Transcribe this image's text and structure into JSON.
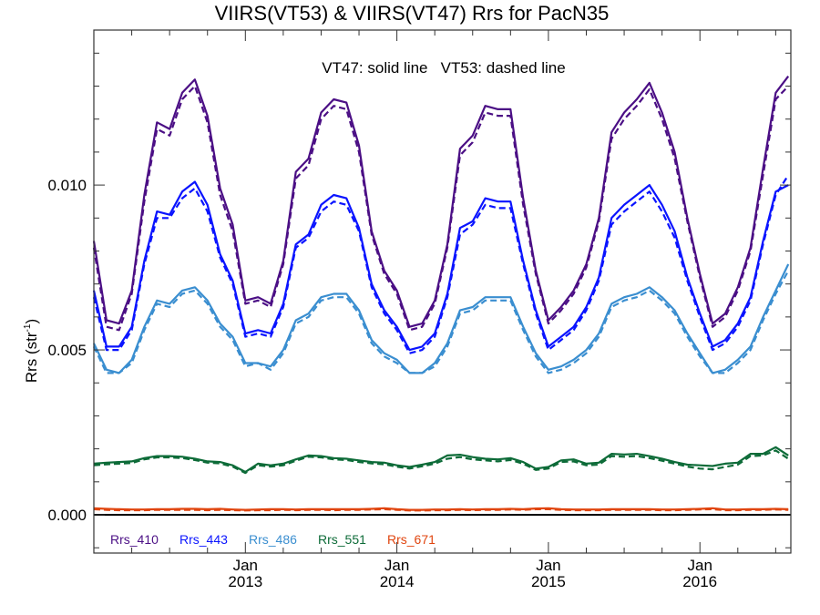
{
  "chart_data": {
    "type": "line",
    "title": "VIIRS(VT53) & VIIRS(VT47)  Rrs for PacN35",
    "annotation": "VT47: solid line   VT53: dashed line",
    "ylabel": "Rrs (str",
    "ylabel_sup": "-1",
    "ylabel_close": ")",
    "xlabel": "",
    "xlim": [
      2012.0,
      2016.6
    ],
    "ylim": [
      -0.00116,
      0.0147
    ],
    "yticks": [
      {
        "value": 0.0,
        "label": "0.000"
      },
      {
        "value": 0.005,
        "label": "0.005"
      },
      {
        "value": 0.01,
        "label": "0.010"
      }
    ],
    "xticks": [
      {
        "value": 2013.0,
        "label1": "Jan",
        "label2": "2013"
      },
      {
        "value": 2014.0,
        "label1": "Jan",
        "label2": "2014"
      },
      {
        "value": 2015.0,
        "label1": "Jan",
        "label2": "2015"
      },
      {
        "value": 2016.0,
        "label1": "Jan",
        "label2": "2016"
      }
    ],
    "x_start": 2012.0,
    "x_step_months": 1,
    "legend_placement": "bottom-left",
    "series": [
      {
        "name": "Rrs_410",
        "color": "#4b0f85",
        "sensor": "VT47",
        "style": "solid",
        "values": [
          0.0083,
          0.0059,
          0.0058,
          0.0068,
          0.0097,
          0.0119,
          0.0117,
          0.0128,
          0.0132,
          0.0121,
          0.0099,
          0.0088,
          0.0065,
          0.0066,
          0.0064,
          0.0077,
          0.0104,
          0.0108,
          0.0122,
          0.0126,
          0.0125,
          0.0112,
          0.0086,
          0.0074,
          0.0068,
          0.0057,
          0.0058,
          0.0065,
          0.0082,
          0.0111,
          0.0115,
          0.0124,
          0.0123,
          0.0123,
          0.0096,
          0.0074,
          0.0059,
          0.0063,
          0.0068,
          0.0076,
          0.009,
          0.0116,
          0.0122,
          0.0126,
          0.0131,
          0.0122,
          0.011,
          0.009,
          0.0073,
          0.0058,
          0.0061,
          0.0069,
          0.0081,
          0.0105,
          0.0128,
          0.0133
        ]
      },
      {
        "name": "Rrs_410",
        "color": "#4b0f85",
        "sensor": "VT53",
        "style": "dashed",
        "values": [
          0.0081,
          0.0057,
          0.0056,
          0.0067,
          0.0095,
          0.0117,
          0.0115,
          0.0126,
          0.013,
          0.0119,
          0.0097,
          0.0086,
          0.0064,
          0.0065,
          0.0063,
          0.0076,
          0.0102,
          0.0106,
          0.012,
          0.0124,
          0.0123,
          0.011,
          0.0085,
          0.0073,
          0.0067,
          0.0056,
          0.0057,
          0.0064,
          0.0081,
          0.0109,
          0.0113,
          0.0122,
          0.0121,
          0.0121,
          0.0094,
          0.0073,
          0.0058,
          0.0062,
          0.0067,
          0.0075,
          0.0089,
          0.0114,
          0.012,
          0.0124,
          0.0129,
          0.012,
          0.0108,
          0.0089,
          0.0072,
          0.0057,
          0.006,
          0.0068,
          0.008,
          0.0103,
          0.0126,
          0.013
        ]
      },
      {
        "name": "Rrs_443",
        "color": "#0a14ff",
        "sensor": "VT47",
        "style": "solid",
        "values": [
          0.0068,
          0.0051,
          0.0051,
          0.0057,
          0.0077,
          0.0092,
          0.0091,
          0.0098,
          0.0101,
          0.0094,
          0.0079,
          0.0071,
          0.0055,
          0.0056,
          0.0055,
          0.0064,
          0.0082,
          0.0085,
          0.0094,
          0.0097,
          0.0096,
          0.0087,
          0.007,
          0.0062,
          0.0057,
          0.005,
          0.0051,
          0.0055,
          0.0067,
          0.0087,
          0.0089,
          0.0096,
          0.0095,
          0.0095,
          0.0077,
          0.0062,
          0.0051,
          0.0054,
          0.0057,
          0.0063,
          0.0072,
          0.009,
          0.0094,
          0.0097,
          0.01,
          0.0094,
          0.0086,
          0.0072,
          0.0061,
          0.0051,
          0.0053,
          0.0058,
          0.0066,
          0.0083,
          0.0098,
          0.01
        ]
      },
      {
        "name": "Rrs_443",
        "color": "#0a14ff",
        "sensor": "VT53",
        "style": "dashed",
        "values": [
          0.0066,
          0.005,
          0.005,
          0.0056,
          0.0076,
          0.009,
          0.009,
          0.0096,
          0.0099,
          0.0092,
          0.0078,
          0.007,
          0.0054,
          0.0055,
          0.0054,
          0.0063,
          0.0081,
          0.0084,
          0.0092,
          0.0095,
          0.0094,
          0.0086,
          0.0069,
          0.0061,
          0.0056,
          0.0049,
          0.005,
          0.0054,
          0.0066,
          0.0085,
          0.0088,
          0.0094,
          0.0093,
          0.0093,
          0.0076,
          0.0061,
          0.005,
          0.0053,
          0.0056,
          0.0062,
          0.0071,
          0.0088,
          0.0092,
          0.0095,
          0.0098,
          0.0092,
          0.0084,
          0.0071,
          0.006,
          0.005,
          0.0052,
          0.0057,
          0.0065,
          0.0082,
          0.0097,
          0.0103
        ]
      },
      {
        "name": "Rrs_486",
        "color": "#3a8ed0",
        "sensor": "VT47",
        "style": "solid",
        "values": [
          0.0052,
          0.0044,
          0.0043,
          0.0047,
          0.0057,
          0.0065,
          0.0064,
          0.0068,
          0.0069,
          0.0065,
          0.0058,
          0.0054,
          0.0046,
          0.0046,
          0.0045,
          0.005,
          0.0059,
          0.0061,
          0.0066,
          0.0067,
          0.0067,
          0.0062,
          0.0053,
          0.0049,
          0.0047,
          0.0043,
          0.0043,
          0.0046,
          0.0052,
          0.0062,
          0.0063,
          0.0066,
          0.0066,
          0.0066,
          0.0057,
          0.0049,
          0.0044,
          0.0045,
          0.0047,
          0.005,
          0.0055,
          0.0064,
          0.0066,
          0.0067,
          0.0069,
          0.0066,
          0.0062,
          0.0055,
          0.0049,
          0.0043,
          0.0044,
          0.0047,
          0.0051,
          0.006,
          0.0068,
          0.0076
        ]
      },
      {
        "name": "Rrs_486",
        "color": "#3a8ed0",
        "sensor": "VT53",
        "style": "dashed",
        "values": [
          0.0051,
          0.0043,
          0.0043,
          0.0046,
          0.0056,
          0.0064,
          0.0063,
          0.0067,
          0.0068,
          0.0064,
          0.0057,
          0.0053,
          0.0045,
          0.0046,
          0.0044,
          0.0049,
          0.0058,
          0.006,
          0.0065,
          0.0066,
          0.0066,
          0.0061,
          0.0052,
          0.0048,
          0.0046,
          0.0043,
          0.0043,
          0.0045,
          0.0051,
          0.0061,
          0.0062,
          0.0065,
          0.0065,
          0.0065,
          0.0056,
          0.0048,
          0.0043,
          0.0044,
          0.0046,
          0.0049,
          0.0054,
          0.0063,
          0.0065,
          0.0066,
          0.0068,
          0.0065,
          0.0061,
          0.0054,
          0.0048,
          0.0043,
          0.0043,
          0.0046,
          0.005,
          0.0059,
          0.0067,
          0.0074
        ]
      },
      {
        "name": "Rrs_551",
        "color": "#0d6b38",
        "sensor": "VT47",
        "style": "solid",
        "values": [
          0.00155,
          0.00158,
          0.0016,
          0.00162,
          0.00172,
          0.00178,
          0.00178,
          0.00176,
          0.0017,
          0.00162,
          0.0016,
          0.0015,
          0.0013,
          0.00155,
          0.0015,
          0.00155,
          0.00168,
          0.0018,
          0.00178,
          0.00172,
          0.0017,
          0.00165,
          0.0016,
          0.00158,
          0.0015,
          0.00145,
          0.00152,
          0.0016,
          0.0018,
          0.00182,
          0.00175,
          0.0017,
          0.00168,
          0.00172,
          0.0016,
          0.0014,
          0.00145,
          0.00165,
          0.00168,
          0.00155,
          0.00158,
          0.00185,
          0.00183,
          0.00185,
          0.00178,
          0.0017,
          0.0016,
          0.00152,
          0.0015,
          0.00148,
          0.00155,
          0.00158,
          0.00185,
          0.00185,
          0.00205,
          0.0018
        ]
      },
      {
        "name": "Rrs_551",
        "color": "#0d6b38",
        "sensor": "VT53",
        "style": "dashed",
        "values": [
          0.0015,
          0.00153,
          0.00155,
          0.00157,
          0.00168,
          0.00174,
          0.00174,
          0.00172,
          0.00166,
          0.00158,
          0.00156,
          0.00146,
          0.00127,
          0.0015,
          0.00146,
          0.0015,
          0.00164,
          0.00176,
          0.00174,
          0.00168,
          0.00166,
          0.0016,
          0.00156,
          0.00153,
          0.00146,
          0.0014,
          0.00147,
          0.00155,
          0.0017,
          0.00175,
          0.00168,
          0.00165,
          0.00162,
          0.00166,
          0.00155,
          0.00136,
          0.0014,
          0.0016,
          0.00162,
          0.0015,
          0.00152,
          0.00178,
          0.00176,
          0.00178,
          0.00172,
          0.00164,
          0.00155,
          0.00146,
          0.0014,
          0.00138,
          0.00145,
          0.00152,
          0.00178,
          0.0018,
          0.00195,
          0.0017
        ]
      },
      {
        "name": "Rrs_671",
        "color": "#e0450f",
        "sensor": "VT47",
        "style": "solid",
        "values": [
          0.0002,
          0.00018,
          0.00017,
          0.00016,
          0.00016,
          0.00017,
          0.00017,
          0.00018,
          0.00018,
          0.00017,
          0.00018,
          0.00016,
          0.00015,
          0.00016,
          0.00017,
          0.00017,
          0.00016,
          0.00017,
          0.00017,
          0.00017,
          0.00017,
          0.00017,
          0.00018,
          0.0002,
          0.00017,
          0.00015,
          0.00015,
          0.00016,
          0.00016,
          0.00017,
          0.00016,
          0.00017,
          0.00017,
          0.00018,
          0.00017,
          0.00019,
          0.0002,
          0.00017,
          0.00016,
          0.00016,
          0.00016,
          0.00017,
          0.00017,
          0.00017,
          0.00017,
          0.00016,
          0.00016,
          0.00017,
          0.00018,
          0.0002,
          0.00016,
          0.00016,
          0.00017,
          0.00017,
          0.00018,
          0.00017
        ]
      },
      {
        "name": "Rrs_671",
        "color": "#e0450f",
        "sensor": "VT53",
        "style": "dashed",
        "values": [
          0.00017,
          0.00015,
          0.00014,
          0.00014,
          0.00014,
          0.00015,
          0.00015,
          0.00015,
          0.00015,
          0.00014,
          0.00015,
          0.00014,
          0.00013,
          0.00014,
          0.00014,
          0.00015,
          0.00014,
          0.00015,
          0.00015,
          0.00014,
          0.00015,
          0.00015,
          0.00016,
          0.00017,
          0.00015,
          0.00013,
          0.00013,
          0.00014,
          0.00014,
          0.00015,
          0.00014,
          0.00015,
          0.00015,
          0.00016,
          0.00015,
          0.00017,
          0.00017,
          0.00015,
          0.00014,
          0.00014,
          0.00014,
          0.00015,
          0.00015,
          0.00015,
          0.00015,
          0.00014,
          0.00014,
          0.00015,
          0.00016,
          0.00017,
          0.00014,
          0.00014,
          0.00015,
          0.00015,
          0.00016,
          0.00015
        ]
      }
    ],
    "legend": [
      {
        "label": "Rrs_410",
        "color": "#4b0f85"
      },
      {
        "label": "Rrs_443",
        "color": "#0a14ff"
      },
      {
        "label": "Rrs_486",
        "color": "#3a8ed0"
      },
      {
        "label": "Rrs_551",
        "color": "#0d6b38"
      },
      {
        "label": "Rrs_671",
        "color": "#e0450f"
      }
    ]
  }
}
